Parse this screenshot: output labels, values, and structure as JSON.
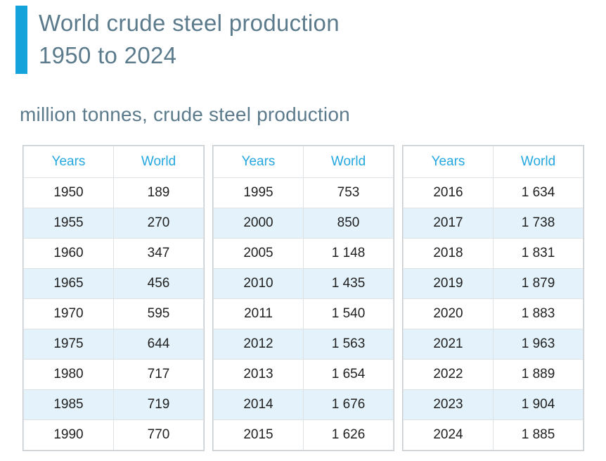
{
  "header": {
    "title_line1": "World crude steel production",
    "title_line2": "1950 to 2024",
    "subtitle": "million tonnes, crude steel production"
  },
  "colors": {
    "accent_bar": "#15a3dc",
    "table_header_text": "#25a7e0",
    "title_text": "#5b7b8c",
    "row_stripe": "#e4f3fb",
    "cell_text": "#212121",
    "table_border": "#dee2e5"
  },
  "tables": [
    {
      "headers": [
        "Years",
        "World"
      ],
      "rows": [
        [
          "1950",
          "189"
        ],
        [
          "1955",
          "270"
        ],
        [
          "1960",
          "347"
        ],
        [
          "1965",
          "456"
        ],
        [
          "1970",
          "595"
        ],
        [
          "1975",
          "644"
        ],
        [
          "1980",
          "717"
        ],
        [
          "1985",
          "719"
        ],
        [
          "1990",
          "770"
        ]
      ]
    },
    {
      "headers": [
        "Years",
        "World"
      ],
      "rows": [
        [
          "1995",
          "753"
        ],
        [
          "2000",
          "850"
        ],
        [
          "2005",
          "1 148"
        ],
        [
          "2010",
          "1 435"
        ],
        [
          "2011",
          "1 540"
        ],
        [
          "2012",
          "1 563"
        ],
        [
          "2013",
          "1 654"
        ],
        [
          "2014",
          "1 676"
        ],
        [
          "2015",
          "1 626"
        ]
      ]
    },
    {
      "headers": [
        "Years",
        "World"
      ],
      "rows": [
        [
          "2016",
          "1 634"
        ],
        [
          "2017",
          "1 738"
        ],
        [
          "2018",
          "1 831"
        ],
        [
          "2019",
          "1 879"
        ],
        [
          "2020",
          "1 883"
        ],
        [
          "2021",
          "1 963"
        ],
        [
          "2022",
          "1 889"
        ],
        [
          "2023",
          "1 904"
        ],
        [
          "2024",
          "1 885"
        ]
      ]
    }
  ],
  "chart_data": {
    "type": "table",
    "title": "World crude steel production 1950 to 2024",
    "units": "million tonnes, crude steel production",
    "columns": [
      "Years",
      "World"
    ],
    "x": [
      1950,
      1955,
      1960,
      1965,
      1970,
      1975,
      1980,
      1985,
      1990,
      1995,
      2000,
      2005,
      2010,
      2011,
      2012,
      2013,
      2014,
      2015,
      2016,
      2017,
      2018,
      2019,
      2020,
      2021,
      2022,
      2023,
      2024
    ],
    "series": [
      {
        "name": "World",
        "values": [
          189,
          270,
          347,
          456,
          595,
          644,
          717,
          719,
          770,
          753,
          850,
          1148,
          1435,
          1540,
          1563,
          1654,
          1676,
          1626,
          1634,
          1738,
          1831,
          1879,
          1883,
          1963,
          1889,
          1904,
          1885
        ]
      }
    ]
  }
}
